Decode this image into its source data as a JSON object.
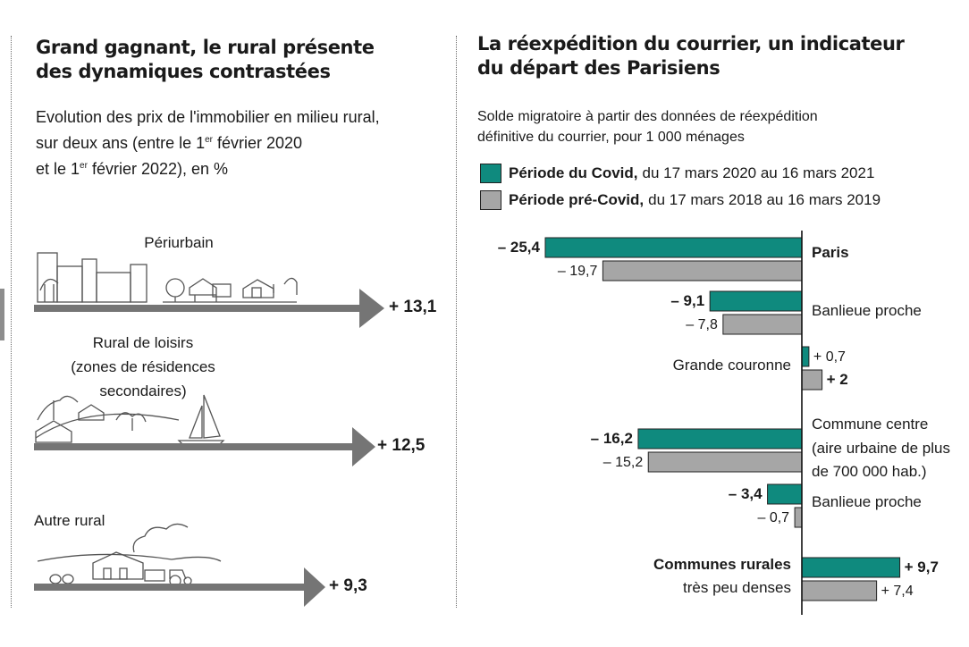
{
  "left": {
    "title_line1": "Grand gagnant, le rural présente",
    "title_line2": "des dynamiques contrastées",
    "subtitle_line1": "Evolution des prix de l'immobilier en milieu rural,",
    "subtitle_line2a": "sur deux ans (entre le 1",
    "subtitle_line2sup": "er",
    "subtitle_line2b": " février 2020",
    "subtitle_line3a": "et le 1",
    "subtitle_line3sup": "er",
    "subtitle_line3b": " février 2022), en %",
    "categories": [
      {
        "label_lines": [
          "Périurbain"
        ],
        "value_label": "+ 13,1",
        "value": 13.1
      },
      {
        "label_lines": [
          "Rural de loisirs",
          "(zones de résidences",
          "secondaires)"
        ],
        "value_label": "+ 12,5",
        "value": 12.5
      },
      {
        "label_lines": [
          "Autre rural"
        ],
        "value_label": "+ 9,3",
        "value": 9.3
      }
    ]
  },
  "right": {
    "title_line1": "La réexpédition du courrier, un indicateur",
    "title_line2": "du départ des Parisiens",
    "subtitle_line1": "Solde migratoire à partir des données de réexpédition",
    "subtitle_line2": "définitive du courrier, pour 1 000 ménages",
    "legend": [
      {
        "bold": "Période du Covid,",
        "rest": "du 17 mars 2020 au 16 mars 2021",
        "color": "#0f8a7e"
      },
      {
        "bold": "Période pré-Covid,",
        "rest": "du 17 mars 2018 au 16 mars 2019",
        "color": "#a6a6a6"
      }
    ]
  },
  "chart_data": [
    {
      "type": "bar",
      "title": "Grand gagnant, le rural présente des dynamiques contrastées",
      "subtitle": "Evolution des prix de l'immobilier en milieu rural, sur deux ans (entre le 1er février 2020 et le 1er février 2022), en %",
      "categories": [
        "Périurbain",
        "Rural de loisirs (zones de résidences secondaires)",
        "Autre rural"
      ],
      "values": [
        13.1,
        12.5,
        9.3
      ]
    },
    {
      "type": "bar",
      "orientation": "horizontal",
      "title": "La réexpédition du courrier, un indicateur du départ des Parisiens",
      "subtitle": "Solde migratoire à partir des données de réexpédition définitive du courrier, pour 1 000 ménages",
      "categories": [
        {
          "label_lines": [
            "Paris"
          ],
          "bold": true
        },
        {
          "label_lines": [
            "Banlieue proche"
          ],
          "bold": false
        },
        {
          "label_lines": [
            "Grande couronne"
          ],
          "bold": false
        },
        {
          "label_lines": [
            "Commune centre",
            "(aire urbaine de plus",
            "de 700 000 hab.)"
          ],
          "bold": false
        },
        {
          "label_lines": [
            "Banlieue proche"
          ],
          "bold": false
        },
        {
          "label_lines": [
            "Communes rurales",
            "très peu denses"
          ],
          "bold": true
        }
      ],
      "series": [
        {
          "name": "Période du Covid",
          "color": "#0f8a7e",
          "values": [
            -25.4,
            -9.1,
            0.7,
            -16.2,
            -3.4,
            9.7
          ],
          "labels": [
            "– 25,4",
            "– 9,1",
            "+ 0,7",
            "– 16,2",
            "– 3,4",
            "+ 9,7"
          ],
          "labels_bold": [
            true,
            true,
            false,
            true,
            true,
            true
          ]
        },
        {
          "name": "Période pré-Covid",
          "color": "#a6a6a6",
          "values": [
            -19.7,
            -7.8,
            2,
            -15.2,
            -0.7,
            7.4
          ],
          "labels": [
            "– 19,7",
            "– 7,8",
            "+ 2",
            "– 15,2",
            "– 0,7",
            "+ 7,4"
          ],
          "labels_bold": [
            false,
            false,
            true,
            false,
            false,
            false
          ]
        }
      ]
    }
  ]
}
